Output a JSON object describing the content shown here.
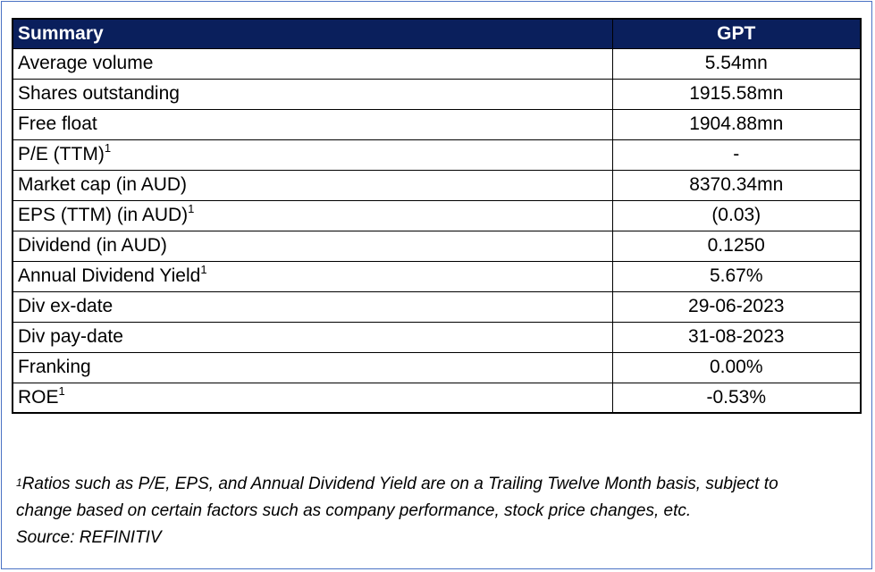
{
  "table": {
    "header": {
      "label": "Summary",
      "value": "GPT"
    },
    "rows": [
      {
        "label": "Average volume",
        "sup": "",
        "value": "5.54mn"
      },
      {
        "label": "Shares outstanding",
        "sup": "",
        "value": "1915.58mn"
      },
      {
        "label": "Free float",
        "sup": "",
        "value": "1904.88mn"
      },
      {
        "label": "P/E (TTM)",
        "sup": "1",
        "value": "-"
      },
      {
        "label": "Market cap (in AUD)",
        "sup": "",
        "value": "8370.34mn"
      },
      {
        "label": "EPS (TTM) (in AUD)",
        "sup": "1",
        "value": "(0.03)"
      },
      {
        "label": "Dividend (in AUD)",
        "sup": "",
        "value": "0.1250"
      },
      {
        "label": "Annual Dividend Yield",
        "sup": "1",
        "value": "5.67%"
      },
      {
        "label": "Div ex-date",
        "sup": "",
        "value": "29-06-2023"
      },
      {
        "label": "Div pay-date",
        "sup": "",
        "value": "31-08-2023"
      },
      {
        "label": "Franking",
        "sup": "",
        "value": "0.00%"
      },
      {
        "label": "ROE",
        "sup": "1",
        "value": "-0.53%"
      }
    ]
  },
  "footnote": {
    "marker": "1",
    "line1": "Ratios such as P/E, EPS, and Annual Dividend Yield are on a Trailing Twelve Month basis, subject to",
    "line2": "change based on certain factors such as company performance, stock price changes, etc.",
    "source": "Source: REFINITIV"
  },
  "colors": {
    "header_bg": "#0a1f5c",
    "header_text": "#ffffff",
    "frame_border": "#4a72c4"
  }
}
